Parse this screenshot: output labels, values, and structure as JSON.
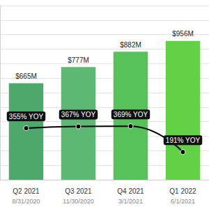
{
  "chart_data": {
    "type": "bar",
    "categories": [
      "Q2 2021",
      "Q3 2021",
      "Q4 2021",
      "Q1 2022"
    ],
    "category_dates": [
      "8/31/2020",
      "11/30/2020",
      "3/1/2021",
      "6/1/2021"
    ],
    "ylim": [
      0,
      1200
    ],
    "yticks": [
      0,
      100,
      200,
      300,
      400,
      500,
      600,
      700,
      800,
      900,
      1000,
      1100,
      1200
    ],
    "y2lim": [
      0,
      1200
    ],
    "y2ticks": [
      0,
      100,
      200,
      300,
      400,
      500,
      600,
      700,
      800,
      900,
      1000,
      1100,
      1200
    ],
    "grid": true,
    "tick_labels": "x",
    "series": [
      {
        "type": "bar",
        "colors": [
          "#4ea86c",
          "#5cb872",
          "#58c25a",
          "#63d146"
        ],
        "values": [
          665,
          777,
          882,
          956
        ],
        "value_labels": [
          "$665M",
          "$777M",
          "$882M",
          "$956M"
        ],
        "data_labels": true
      },
      {
        "type": "line",
        "axis": "y2",
        "color": "#000000",
        "marker": "circle",
        "line_style": "solid",
        "values": [
          355,
          367,
          369,
          191
        ],
        "value_labels": [
          "355% YOY",
          "367% YOY",
          "369% YOY",
          "191% YOY"
        ],
        "data_labels": true
      }
    ]
  }
}
